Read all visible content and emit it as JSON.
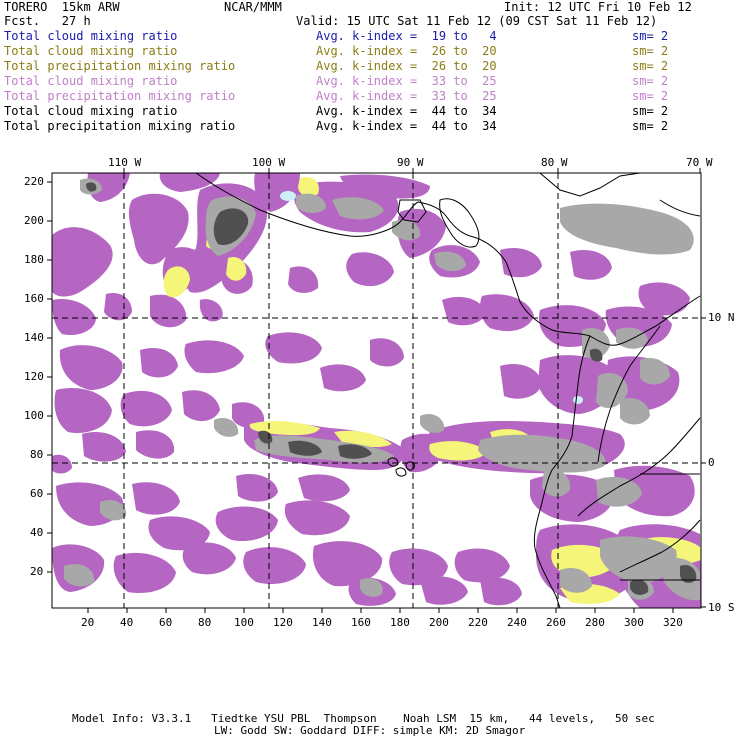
{
  "header": {
    "model": "TORERO  15km ARW",
    "center": "NCAR/MMM",
    "init": "Init: 12 UTC Fri 10 Feb 12",
    "fcst": "Fcst.   27 h",
    "valid": "Valid: 15 UTC Sat 11 Feb 12 (09 CST Sat 11 Feb 12)"
  },
  "legend": [
    {
      "field": "Total cloud mixing ratio",
      "kindex": "Avg. k-index =  19 to   4",
      "sm": "sm= 2",
      "color": "#1a1aa8"
    },
    {
      "field": "Total cloud mixing ratio",
      "kindex": "Avg. k-index =  26 to  20",
      "sm": "sm= 2",
      "color": "#8b7d14"
    },
    {
      "field": "Total precipitation mixing ratio",
      "kindex": "Avg. k-index =  26 to  20",
      "sm": "sm= 2",
      "color": "#8b7d14"
    },
    {
      "field": "Total cloud mixing ratio",
      "kindex": "Avg. k-index =  33 to  25",
      "sm": "sm= 2",
      "color": "#c080c8"
    },
    {
      "field": "Total precipitation mixing ratio",
      "kindex": "Avg. k-index =  33 to  25",
      "sm": "sm= 2",
      "color": "#c080c8"
    },
    {
      "field": "Total cloud mixing ratio",
      "kindex": "Avg. k-index =  44 to  34",
      "sm": "sm= 2",
      "color": "#000000"
    },
    {
      "field": "Total precipitation mixing ratio",
      "kindex": "Avg. k-index =  44 to  34",
      "sm": "sm= 2",
      "color": "#000000"
    }
  ],
  "axes": {
    "top": [
      "110 W",
      "100 W",
      "90 W",
      "80 W",
      "70 W"
    ],
    "left": [
      "220",
      "200",
      "180",
      "160",
      "140",
      "120",
      "100",
      "80",
      "60",
      "40",
      "20"
    ],
    "bottom": [
      "20",
      "40",
      "60",
      "80",
      "100",
      "120",
      "140",
      "160",
      "180",
      "200",
      "220",
      "240",
      "260",
      "280",
      "300",
      "320"
    ],
    "right": [
      "10 N",
      "0",
      "10 S"
    ]
  },
  "footer": {
    "line1": "Model Info: V3.3.1   Tiedtke YSU PBL  Thompson    Noah LSM  15 km,   44 levels,   50 sec",
    "line2": "LW: Godd SW: Goddard DIFF: simple KM: 2D Smagor"
  },
  "colors": {
    "violet": "#b565c2",
    "yellow": "#f5f57a",
    "gray": "#a8a8a8",
    "darkgray": "#505050",
    "cyan": "#cdeff8"
  }
}
